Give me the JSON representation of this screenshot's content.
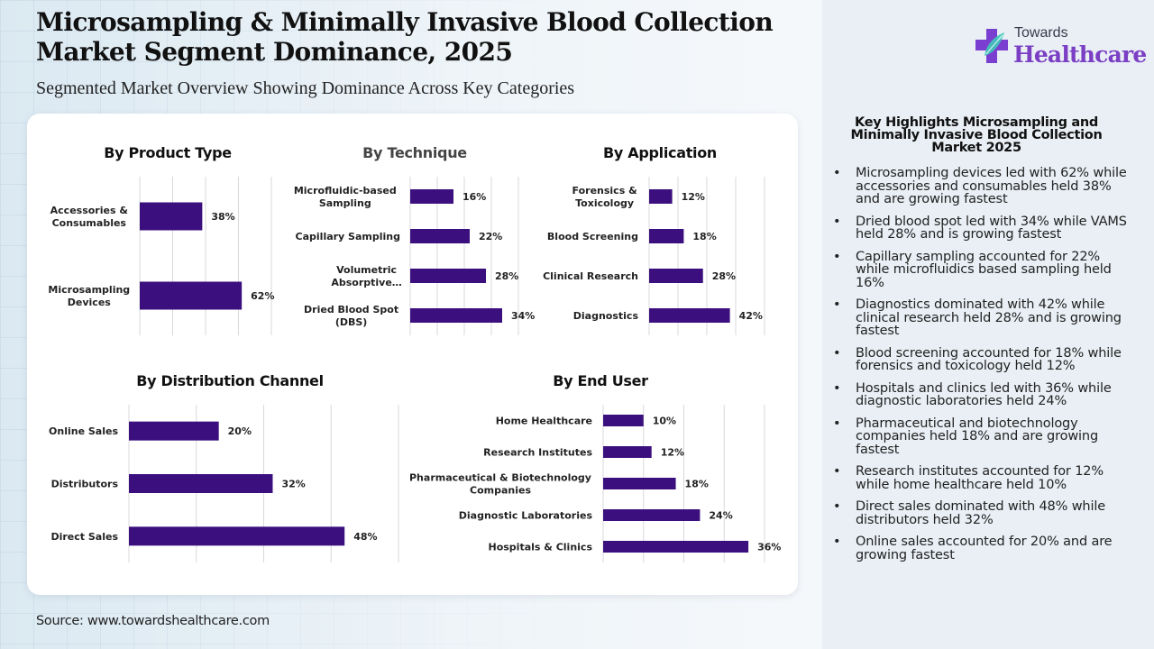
{
  "header": {
    "title": "Microsampling & Minimally Invasive Blood Collection Market Segment Dominance, 2025",
    "subtitle": "Segmented Market Overview Showing Dominance Across Key Categories"
  },
  "logo": {
    "line1": "Towards",
    "line2": "Healthcare",
    "icon": "medical-cross-leaf-icon",
    "brand_color": "#7b3fc4"
  },
  "colors": {
    "bar": "#3b0f7e",
    "gridline": "#d8d8de",
    "card_bg": "#ffffff"
  },
  "chart_data": [
    {
      "type": "bar",
      "orientation": "horizontal",
      "title": "By Product Type",
      "categories": [
        "Accessories & Consumables",
        "Microsampling Devices"
      ],
      "category_lines": [
        [
          "Accessories &",
          "Consumables"
        ],
        [
          "Microsampling",
          "Devices"
        ]
      ],
      "values": [
        38,
        62
      ],
      "value_labels": [
        "38%",
        "62%"
      ],
      "xlim": [
        0,
        80
      ],
      "grid": true,
      "unit": "%"
    },
    {
      "type": "bar",
      "orientation": "horizontal",
      "title": "By Technique",
      "categories": [
        "Microfluidic-based Sampling",
        "Capillary Sampling",
        "Volumetric Absorptive…",
        "Dried Blood Spot (DBS)"
      ],
      "category_lines": [
        [
          "Microfluidic-based",
          "Sampling"
        ],
        [
          "Capillary Sampling"
        ],
        [
          "Volumetric",
          "Absorptive…"
        ],
        [
          "Dried Blood Spot",
          "(DBS)"
        ]
      ],
      "values": [
        16,
        22,
        28,
        34
      ],
      "value_labels": [
        "16%",
        "22%",
        "28%",
        "34%"
      ],
      "xlim": [
        0,
        40
      ],
      "grid": true,
      "unit": "%"
    },
    {
      "type": "bar",
      "orientation": "horizontal",
      "title": "By Application",
      "categories": [
        "Forensics & Toxicology",
        "Blood Screening",
        "Clinical Research",
        "Diagnostics"
      ],
      "category_lines": [
        [
          "Forensics &",
          "Toxicology"
        ],
        [
          "Blood Screening"
        ],
        [
          "Clinical Research"
        ],
        [
          "Diagnostics"
        ]
      ],
      "values": [
        12,
        18,
        28,
        42
      ],
      "value_labels": [
        "12%",
        "18%",
        "28%",
        "42%"
      ],
      "xlim": [
        0,
        60
      ],
      "grid": true,
      "unit": "%"
    },
    {
      "type": "bar",
      "orientation": "horizontal",
      "title": "By Distribution Channel",
      "categories": [
        "Online Sales",
        "Distributors",
        "Direct Sales"
      ],
      "category_lines": [
        [
          "Online Sales"
        ],
        [
          "Distributors"
        ],
        [
          "Direct Sales"
        ]
      ],
      "values": [
        20,
        32,
        48
      ],
      "value_labels": [
        "20%",
        "32%",
        "48%"
      ],
      "xlim": [
        0,
        60
      ],
      "grid": true,
      "unit": "%"
    },
    {
      "type": "bar",
      "orientation": "horizontal",
      "title": "By End User",
      "categories": [
        "Home Healthcare",
        "Research Institutes",
        "Pharmaceutical & Biotechnology Companies",
        "Diagnostic Laboratories",
        "Hospitals & Clinics"
      ],
      "category_lines": [
        [
          "Home Healthcare"
        ],
        [
          "Research Institutes"
        ],
        [
          "Pharmaceutical & Biotechnology",
          "Companies"
        ],
        [
          "Diagnostic Laboratories"
        ],
        [
          "Hospitals & Clinics"
        ]
      ],
      "values": [
        10,
        12,
        18,
        24,
        36
      ],
      "value_labels": [
        "10%",
        "12%",
        "18%",
        "24%",
        "36%"
      ],
      "xlim": [
        0,
        40
      ],
      "grid": true,
      "unit": "%"
    }
  ],
  "highlights": {
    "title": "Key Highlights Microsampling and Minimally Invasive Blood Collection Market 2025",
    "bullet": "•",
    "items": [
      "Microsampling devices led with 62% while accessories and consumables held 38% and are growing fastest",
      "Dried blood spot led with 34% while VAMS held 28% and is growing fastest",
      "Capillary sampling accounted for 22% while microfluidics based sampling held 16%",
      "Diagnostics dominated with 42% while clinical research held 28% and is growing fastest",
      "Blood screening accounted for 18% while forensics and toxicology held 12%",
      "Hospitals and clinics led with 36% while diagnostic laboratories held 24%",
      "Pharmaceutical and biotechnology companies held 18% and are growing fastest",
      "Research institutes accounted for 12% while home healthcare held 10%",
      "Direct sales dominated with 48% while distributors held 32%",
      "Online sales accounted for 20% and are growing fastest"
    ]
  },
  "footer": {
    "source": "Source: www.towardshealthcare.com"
  }
}
